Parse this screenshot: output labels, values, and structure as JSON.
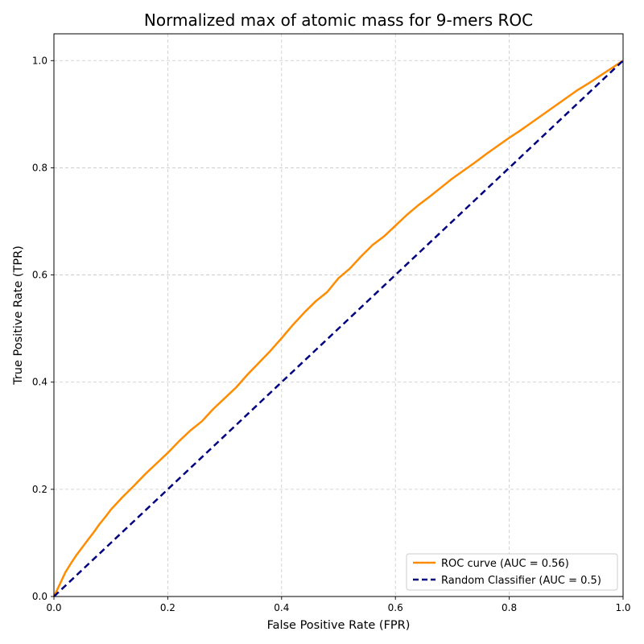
{
  "chart_data": {
    "type": "line",
    "title": "Normalized max of atomic mass for 9-mers ROC",
    "xlabel": "False Positive Rate (FPR)",
    "ylabel": "True Positive Rate (TPR)",
    "xlim": [
      0.0,
      1.0
    ],
    "ylim": [
      0.0,
      1.05
    ],
    "xticks": [
      "0.0",
      "0.2",
      "0.4",
      "0.6",
      "0.8",
      "1.0"
    ],
    "yticks": [
      "0.0",
      "0.2",
      "0.4",
      "0.6",
      "0.8",
      "1.0"
    ],
    "grid": true,
    "legend_position": "lower-right",
    "series": [
      {
        "name": "ROC curve (AUC = 0.56)",
        "color": "#ff8c00",
        "style": "solid",
        "x": [
          0.0,
          0.01,
          0.02,
          0.03,
          0.04,
          0.05,
          0.06,
          0.07,
          0.08,
          0.09,
          0.1,
          0.12,
          0.14,
          0.16,
          0.18,
          0.2,
          0.22,
          0.24,
          0.26,
          0.28,
          0.3,
          0.32,
          0.34,
          0.36,
          0.38,
          0.4,
          0.42,
          0.44,
          0.46,
          0.48,
          0.5,
          0.52,
          0.54,
          0.56,
          0.58,
          0.6,
          0.62,
          0.64,
          0.66,
          0.68,
          0.7,
          0.72,
          0.74,
          0.76,
          0.78,
          0.8,
          0.82,
          0.84,
          0.86,
          0.88,
          0.9,
          0.92,
          0.94,
          0.96,
          0.98,
          1.0
        ],
        "y": [
          0.0,
          0.022,
          0.045,
          0.062,
          0.078,
          0.092,
          0.106,
          0.12,
          0.135,
          0.148,
          0.162,
          0.185,
          0.206,
          0.228,
          0.248,
          0.268,
          0.29,
          0.31,
          0.327,
          0.35,
          0.37,
          0.39,
          0.414,
          0.436,
          0.458,
          0.482,
          0.507,
          0.53,
          0.551,
          0.568,
          0.594,
          0.612,
          0.635,
          0.656,
          0.672,
          0.692,
          0.712,
          0.73,
          0.746,
          0.763,
          0.78,
          0.795,
          0.81,
          0.826,
          0.841,
          0.856,
          0.87,
          0.885,
          0.9,
          0.915,
          0.93,
          0.945,
          0.958,
          0.972,
          0.986,
          1.0
        ]
      },
      {
        "name": "Random Classifier (AUC = 0.5)",
        "color": "#000080",
        "style": "dashed",
        "x": [
          0.0,
          1.0
        ],
        "y": [
          0.0,
          1.0
        ]
      }
    ]
  }
}
